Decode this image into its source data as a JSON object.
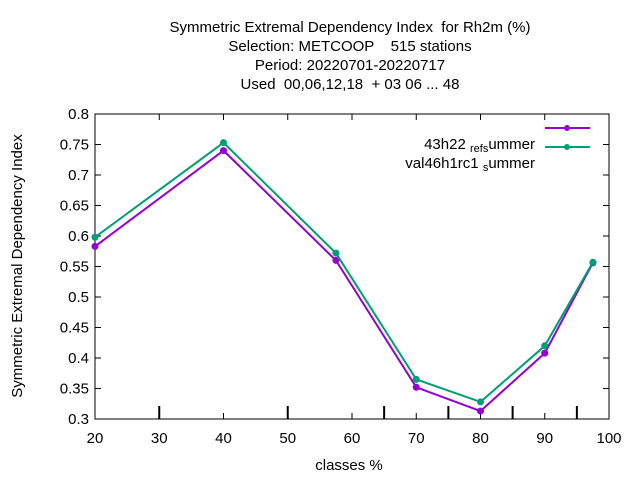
{
  "chart_data": {
    "type": "line",
    "title_lines": [
      "Symmetric Extremal Dependency Index  for Rh2m (%)",
      "Selection: METCOOP    515 stations",
      "Period: 20220701-20220717",
      "Used  00,06,12,18  + 03 06 ... 48"
    ],
    "xlabel": "classes %",
    "ylabel": "Symmetric Extremal Dependency Index",
    "xlim": [
      20,
      100
    ],
    "ylim": [
      0.3,
      0.8
    ],
    "xticks": [
      20,
      30,
      40,
      50,
      60,
      70,
      80,
      90,
      100
    ],
    "yticks": [
      "0.3",
      "0.35",
      "0.4",
      "0.45",
      "0.5",
      "0.55",
      "0.6",
      "0.65",
      "0.7",
      "0.75",
      "0.8"
    ],
    "minor_xticks": [
      30,
      50,
      65,
      75,
      85,
      95
    ],
    "grid": false,
    "legend_position": "top-right",
    "series": [
      {
        "name_parts": [
          "43h22",
          "ref",
          "s",
          "ummer"
        ],
        "color": "#9400d3",
        "x": [
          20,
          40,
          57.5,
          70,
          80,
          90,
          97.5
        ],
        "y": [
          0.583,
          0.74,
          0.56,
          0.352,
          0.313,
          0.408,
          0.556
        ]
      },
      {
        "name_parts": [
          "val46h1rc1",
          "",
          "s",
          "ummer"
        ],
        "color": "#009e73",
        "x": [
          20,
          40,
          57.5,
          70,
          80,
          90,
          97.5
        ],
        "y": [
          0.598,
          0.753,
          0.572,
          0.365,
          0.328,
          0.42,
          0.557
        ]
      }
    ]
  }
}
